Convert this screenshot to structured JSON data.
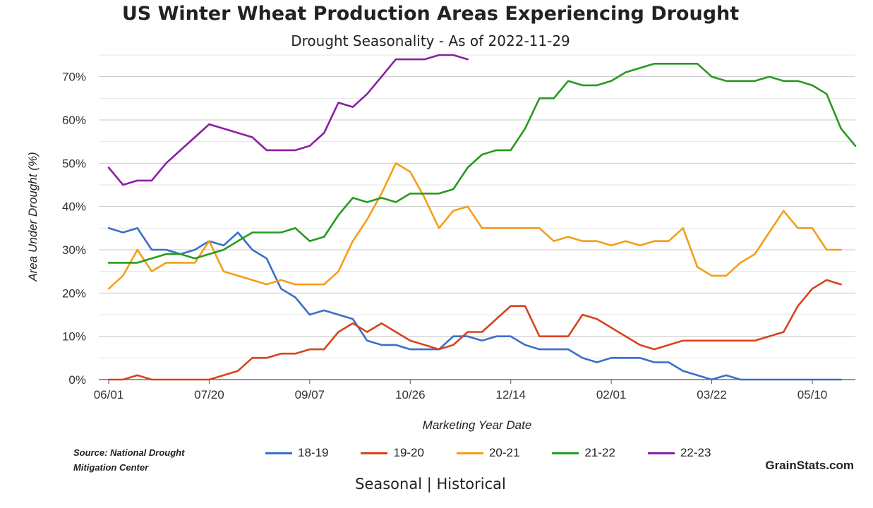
{
  "title": "US Winter Wheat Production Areas Experiencing Drought",
  "subtitle": "Drought Seasonality - As of 2022-11-29",
  "source_line1": "Source: National Drought",
  "source_line2": "Mitigation Center",
  "brand": "GrainStats.com",
  "view_toggle": {
    "seasonal": "Seasonal",
    "separator": "|",
    "historical": "Historical"
  },
  "chart_data": {
    "type": "line",
    "title": "US Winter Wheat Production Areas Experiencing Drought",
    "subtitle": "Drought Seasonality - As of 2022-11-29",
    "xlabel": "Marketing Year Date",
    "ylabel": "Area Under Drought (%)",
    "ylim": [
      0,
      75
    ],
    "yticks": [
      0,
      10,
      20,
      30,
      40,
      50,
      60,
      70
    ],
    "ytick_labels": [
      "0%",
      "10%",
      "20%",
      "30%",
      "40%",
      "50%",
      "60%",
      "70%"
    ],
    "xlim": [
      0,
      52
    ],
    "xticks": [
      0,
      7,
      14,
      21,
      28,
      35,
      42,
      49
    ],
    "xtick_labels": [
      "06/01",
      "07/20",
      "09/07",
      "10/26",
      "12/14",
      "02/01",
      "03/22",
      "05/10"
    ],
    "grid": true,
    "legend_position": "bottom",
    "series": [
      {
        "name": "18-19",
        "color": "#3a6fc9",
        "values": [
          35,
          34,
          35,
          30,
          30,
          29,
          30,
          32,
          31,
          34,
          30,
          28,
          21,
          19,
          15,
          16,
          15,
          14,
          9,
          8,
          8,
          7,
          7,
          7,
          10,
          10,
          9,
          10,
          10,
          8,
          7,
          7,
          7,
          5,
          4,
          5,
          5,
          5,
          4,
          4,
          2,
          1,
          0,
          1,
          0,
          0,
          0,
          0,
          0,
          0,
          0,
          0
        ]
      },
      {
        "name": "19-20",
        "color": "#d9431c",
        "values": [
          0,
          0,
          1,
          0,
          0,
          0,
          0,
          0,
          1,
          2,
          5,
          5,
          6,
          6,
          7,
          7,
          11,
          13,
          11,
          13,
          11,
          9,
          8,
          7,
          8,
          11,
          11,
          14,
          17,
          17,
          10,
          10,
          10,
          15,
          14,
          12,
          10,
          8,
          7,
          8,
          9,
          9,
          9,
          9,
          9,
          9,
          10,
          11,
          17,
          21,
          23,
          22
        ]
      },
      {
        "name": "20-21",
        "color": "#f59e16",
        "values": [
          21,
          24,
          30,
          25,
          27,
          27,
          27,
          32,
          25,
          24,
          23,
          22,
          23,
          22,
          22,
          22,
          25,
          32,
          37,
          43,
          50,
          48,
          42,
          35,
          39,
          40,
          35,
          35,
          35,
          35,
          35,
          32,
          33,
          32,
          32,
          31,
          32,
          31,
          32,
          32,
          35,
          26,
          24,
          24,
          27,
          29,
          34,
          39,
          35,
          35,
          30,
          30
        ]
      },
      {
        "name": "21-22",
        "color": "#279a1f",
        "values": [
          27,
          27,
          27,
          28,
          29,
          29,
          28,
          29,
          30,
          32,
          34,
          34,
          34,
          35,
          32,
          33,
          38,
          42,
          41,
          42,
          41,
          43,
          43,
          43,
          44,
          49,
          52,
          53,
          53,
          58,
          65,
          65,
          69,
          68,
          68,
          69,
          71,
          72,
          73,
          73,
          73,
          73,
          70,
          69,
          69,
          69,
          70,
          69,
          69,
          68,
          66,
          58,
          54
        ]
      },
      {
        "name": "22-23",
        "color": "#8a1fa0",
        "values": [
          49,
          45,
          46,
          46,
          50,
          53,
          56,
          59,
          58,
          57,
          56,
          53,
          53,
          53,
          54,
          57,
          64,
          63,
          66,
          70,
          74,
          74,
          74,
          75,
          75,
          74
        ]
      }
    ]
  }
}
